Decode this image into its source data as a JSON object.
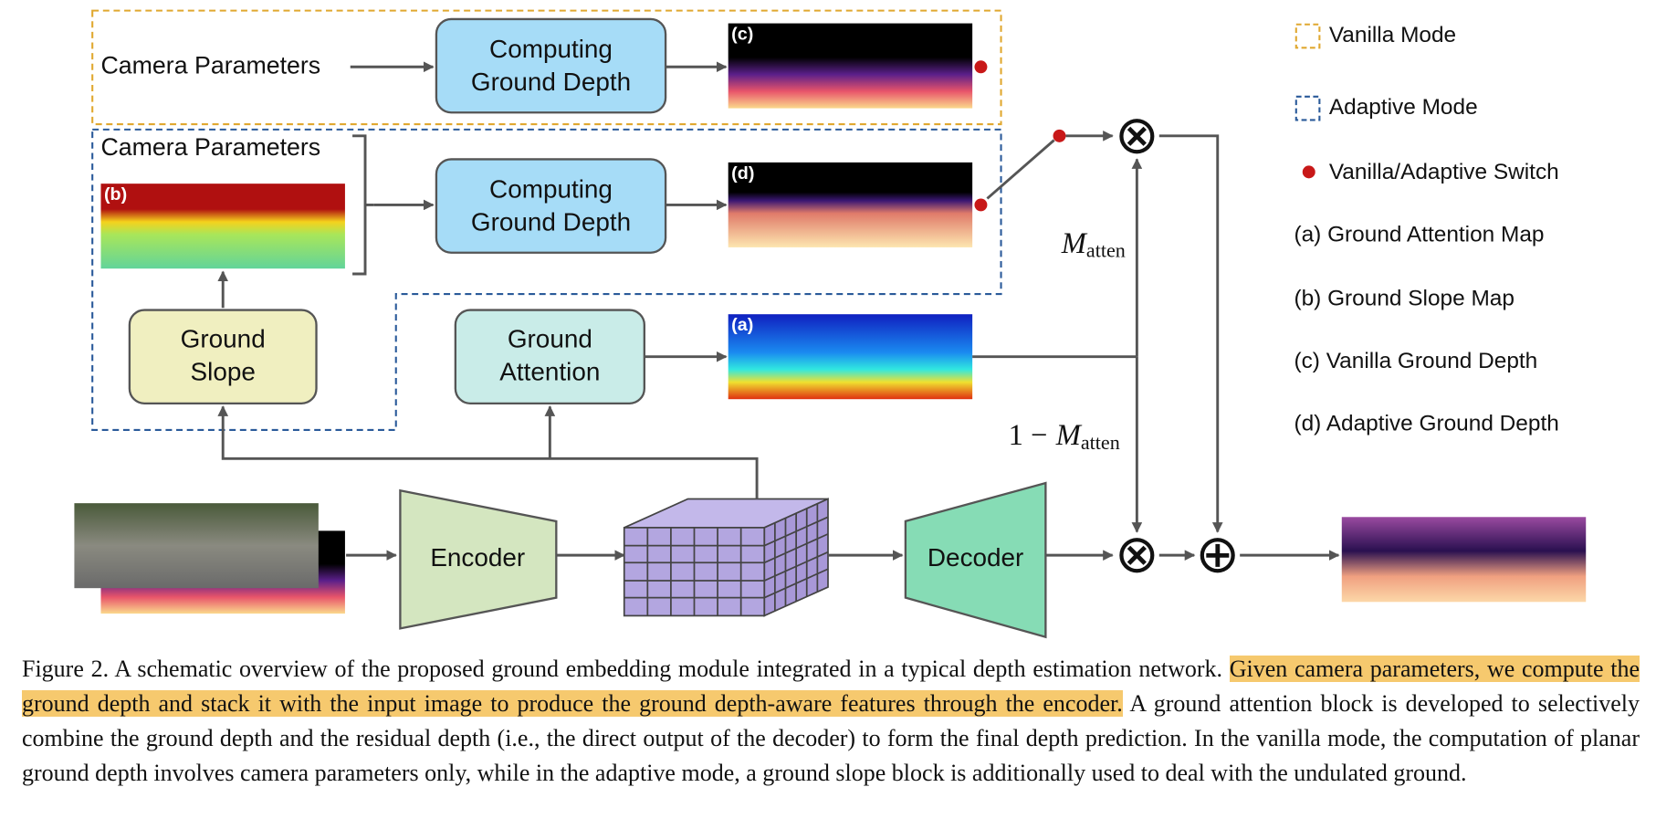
{
  "diagram": {
    "inputs": {
      "vanilla_camera": "Camera Parameters",
      "adaptive_camera": "Camera Parameters"
    },
    "nodes": {
      "vanilla_depth": [
        "Computing",
        "Ground Depth"
      ],
      "adaptive_depth": [
        "Computing",
        "Ground Depth"
      ],
      "ground_slope": [
        "Ground",
        "Slope"
      ],
      "ground_attention": [
        "Ground",
        "Attention"
      ],
      "encoder": "Encoder",
      "decoder": "Decoder"
    },
    "image_tags": {
      "a": "(a)",
      "b": "(b)",
      "c": "(c)",
      "d": "(d)"
    },
    "edge_labels": {
      "m_atten": {
        "symbol": "M",
        "subscript": "atten"
      },
      "one_minus_m_atten": {
        "prefix": "1 −",
        "symbol": "M",
        "subscript": "atten"
      }
    },
    "operators": {
      "multiply": "⊗",
      "add": "⊕"
    },
    "legend": [
      "Vanilla Mode",
      "Adaptive Mode",
      "Vanilla/Adaptive Switch",
      "(a) Ground Attention Map",
      "(b) Ground Slope Map",
      "(c) Vanilla Ground Depth",
      "(d) Adaptive Ground Depth"
    ]
  },
  "caption": {
    "before": "Figure 2. A schematic overview of the proposed ground embedding module integrated in a typical depth estimation network.",
    "highlight": "Given camera parameters, we compute the ground depth and stack it with the input image to produce the ground depth-aware features through the encoder.",
    "after": "A ground attention block is developed to selectively combine the ground depth and the residual depth (i.e., the direct output of the decoder) to form the final depth prediction. In the vanilla mode, the computation of planar ground depth involves camera parameters only, while in the adaptive mode, a ground slope block is additionally used to deal with the undulated ground."
  }
}
